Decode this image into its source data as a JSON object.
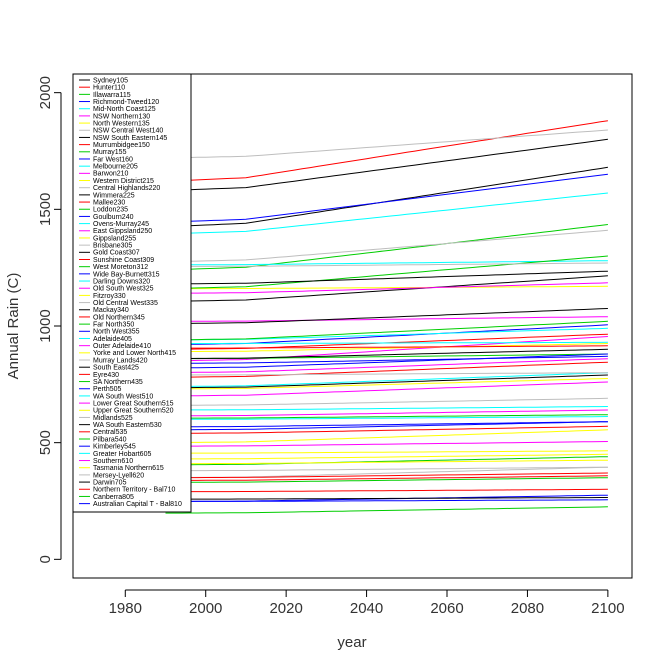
{
  "chart_data": {
    "type": "line",
    "title": "",
    "xlabel": "year",
    "ylabel": "Annual Rain (C)",
    "xlim": [
      1967,
      2106
    ],
    "ylim": [
      -80,
      2080
    ],
    "xticks": [
      1980,
      2000,
      2020,
      2040,
      2060,
      2080,
      2100
    ],
    "yticks": [
      0,
      500,
      1000,
      1500,
      2000
    ],
    "legend_position": "top-left",
    "grid": false,
    "x": [
      1990,
      2000,
      2010,
      2020,
      2030,
      2040,
      2050,
      2060,
      2070,
      2080,
      2090,
      2100
    ],
    "series": [
      {
        "name": "Sydney105",
        "color": "#000000",
        "start": 1425,
        "end": 1680
      },
      {
        "name": "Hunter110",
        "color": "#ff0000",
        "start": 1620,
        "end": 1880
      },
      {
        "name": "Illawarra115",
        "color": "#00cd00",
        "start": 1240,
        "end": 1435
      },
      {
        "name": "Richmond-Tweed120",
        "color": "#0000ff",
        "start": 1445,
        "end": 1650
      },
      {
        "name": "Mid-North Coast125",
        "color": "#00ffff",
        "start": 1395,
        "end": 1570
      },
      {
        "name": "NSW Northern130",
        "color": "#ff00ff",
        "start": 850,
        "end": 955
      },
      {
        "name": "North Western135",
        "color": "#ffff00",
        "start": 500,
        "end": 555
      },
      {
        "name": "NSW Central West140",
        "color": "#bebebe",
        "start": 1720,
        "end": 1840
      },
      {
        "name": "NSW South Eastern145",
        "color": "#000000",
        "start": 1580,
        "end": 1800
      },
      {
        "name": "Murrumbidgee150",
        "color": "#ff0000",
        "start": 900,
        "end": 965
      },
      {
        "name": "Murray155",
        "color": "#00cd00",
        "start": 405,
        "end": 440
      },
      {
        "name": "Far West160",
        "color": "#0000ff",
        "start": 248,
        "end": 275
      },
      {
        "name": "Melbourne205",
        "color": "#00ffff",
        "start": 1262,
        "end": 1280
      },
      {
        "name": "Barwon210",
        "color": "#ff00ff",
        "start": 1020,
        "end": 1040
      },
      {
        "name": "Western District215",
        "color": "#ffff00",
        "start": 1160,
        "end": 1170
      },
      {
        "name": "Central Highlands220",
        "color": "#bebebe",
        "start": 1275,
        "end": 1410
      },
      {
        "name": "Wimmera225",
        "color": "#000000",
        "start": 1105,
        "end": 1215
      },
      {
        "name": "Mallee230",
        "color": "#ff0000",
        "start": 780,
        "end": 845
      },
      {
        "name": "Loddon235",
        "color": "#00cd00",
        "start": 1160,
        "end": 1300
      },
      {
        "name": "Goulburn240",
        "color": "#0000ff",
        "start": 920,
        "end": 1005
      },
      {
        "name": "Ovens-Murray245",
        "color": "#00ffff",
        "start": 940,
        "end": 990
      },
      {
        "name": "East Gippsland250",
        "color": "#ff00ff",
        "start": 1140,
        "end": 1185
      },
      {
        "name": "Gippsland255",
        "color": "#ffff00",
        "start": 890,
        "end": 925
      },
      {
        "name": "Brisbane305",
        "color": "#bebebe",
        "start": 1255,
        "end": 1270
      },
      {
        "name": "Gold Coast307",
        "color": "#000000",
        "start": 1180,
        "end": 1235
      },
      {
        "name": "Sunshine Coast309",
        "color": "#ff0000",
        "start": 905,
        "end": 915
      },
      {
        "name": "West Moreton312",
        "color": "#00cd00",
        "start": 860,
        "end": 880
      },
      {
        "name": "Wide Bay-Burnett315",
        "color": "#0000ff",
        "start": 820,
        "end": 880
      },
      {
        "name": "Darling Downs320",
        "color": "#00ffff",
        "start": 740,
        "end": 800
      },
      {
        "name": "Old South West325",
        "color": "#ff00ff",
        "start": 700,
        "end": 760
      },
      {
        "name": "Fitzroy330",
        "color": "#ffff00",
        "start": 730,
        "end": 775
      },
      {
        "name": "Old Central West335",
        "color": "#bebebe",
        "start": 660,
        "end": 690
      },
      {
        "name": "Mackay340",
        "color": "#000000",
        "start": 1010,
        "end": 1075
      },
      {
        "name": "Old Northern345",
        "color": "#ff0000",
        "start": 540,
        "end": 570
      },
      {
        "name": "Far North350",
        "color": "#00cd00",
        "start": 940,
        "end": 1020
      },
      {
        "name": "North West355",
        "color": "#0000ff",
        "start": 555,
        "end": 590
      },
      {
        "name": "Adelaide405",
        "color": "#00ffff",
        "start": 925,
        "end": 930
      },
      {
        "name": "Outer Adelaide410",
        "color": "#ff00ff",
        "start": 615,
        "end": 640
      },
      {
        "name": "Yorke and Lower North415",
        "color": "#ffff00",
        "start": 455,
        "end": 465
      },
      {
        "name": "Murray Lands420",
        "color": "#bebebe",
        "start": 350,
        "end": 395
      },
      {
        "name": "South East425",
        "color": "#000000",
        "start": 735,
        "end": 790
      },
      {
        "name": "Eyre430",
        "color": "#ff0000",
        "start": 350,
        "end": 370
      },
      {
        "name": "SA Northern435",
        "color": "#00cd00",
        "start": 330,
        "end": 350
      },
      {
        "name": "Perth505",
        "color": "#0000ff",
        "start": 840,
        "end": 870
      },
      {
        "name": "WA South West510",
        "color": "#00ffff",
        "start": 640,
        "end": 655
      },
      {
        "name": "Lower Great Southern515",
        "color": "#ff00ff",
        "start": 485,
        "end": 505
      },
      {
        "name": "Upper Great Southern520",
        "color": "#ffff00",
        "start": 410,
        "end": 425
      },
      {
        "name": "Midlands525",
        "color": "#bebebe",
        "start": 380,
        "end": 395
      },
      {
        "name": "WA South Eastern530",
        "color": "#000000",
        "start": 258,
        "end": 265
      },
      {
        "name": "Central535",
        "color": "#ff0000",
        "start": 290,
        "end": 300
      },
      {
        "name": "Pilbara540",
        "color": "#00cd00",
        "start": 605,
        "end": 620
      },
      {
        "name": "Kimberley545",
        "color": "#0000ff",
        "start": 568,
        "end": 590
      },
      {
        "name": "Greater Hobart605",
        "color": "#00ffff",
        "start": 600,
        "end": 612
      },
      {
        "name": "Southern610",
        "color": "#ff00ff",
        "start": 800,
        "end": 860
      },
      {
        "name": "Tasmania Northern615",
        "color": "#ffff00",
        "start": 430,
        "end": 450
      },
      {
        "name": "Mersey-Lyell620",
        "color": "#bebebe",
        "start": 790,
        "end": 800
      },
      {
        "name": "Darwin705",
        "color": "#000000",
        "start": 860,
        "end": 900
      },
      {
        "name": "Northern Territory - Bal710",
        "color": "#ff0000",
        "start": 338,
        "end": 358
      },
      {
        "name": "Canberra805",
        "color": "#00cd00",
        "start": 198,
        "end": 225
      },
      {
        "name": "Australian Capital T - Bal810",
        "color": "#0000ff",
        "start": 248,
        "end": 255
      }
    ]
  }
}
